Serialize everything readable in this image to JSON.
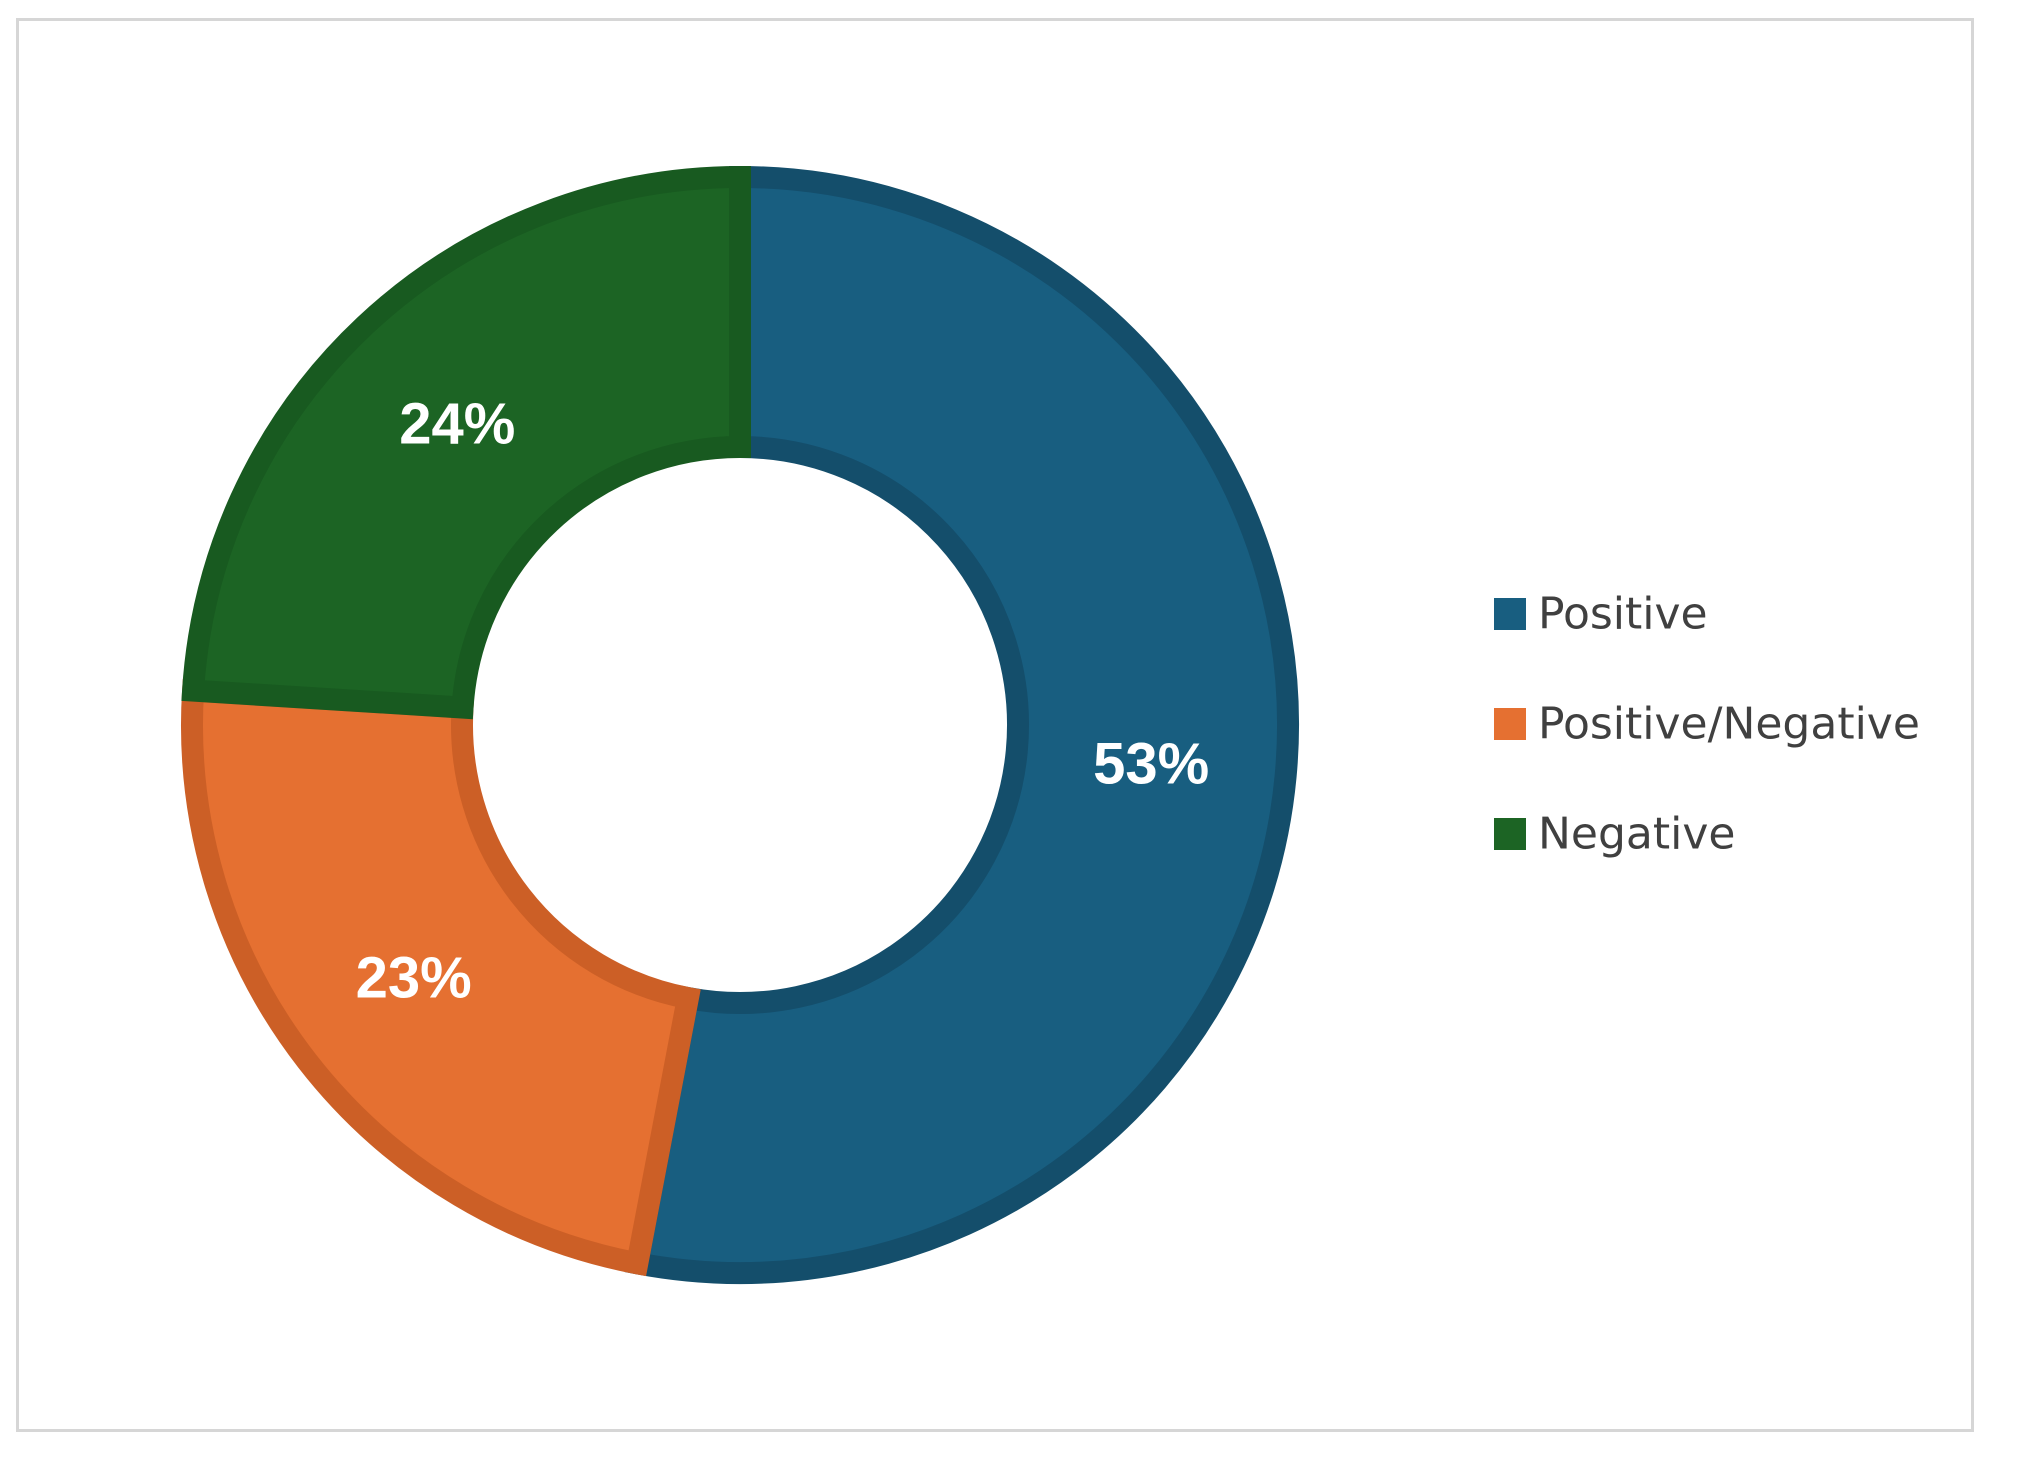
{
  "chart_data": {
    "type": "pie",
    "variant": "donut",
    "title": "",
    "categories": [
      "Positive",
      "Positive/Negative",
      "Negative"
    ],
    "values": [
      53,
      23,
      24
    ],
    "labels": [
      "53%",
      "23%",
      "24%"
    ],
    "unit": "%",
    "colors": [
      "#185e80",
      "#e57031",
      "#1c6424"
    ],
    "edge_colors": [
      "#144e6b",
      "#cc5f26",
      "#185a20"
    ],
    "start_angle_deg": 0,
    "direction": "clockwise",
    "legend": {
      "placement": "right",
      "entries": [
        "Positive",
        "Positive/Negative",
        "Negative"
      ]
    }
  }
}
